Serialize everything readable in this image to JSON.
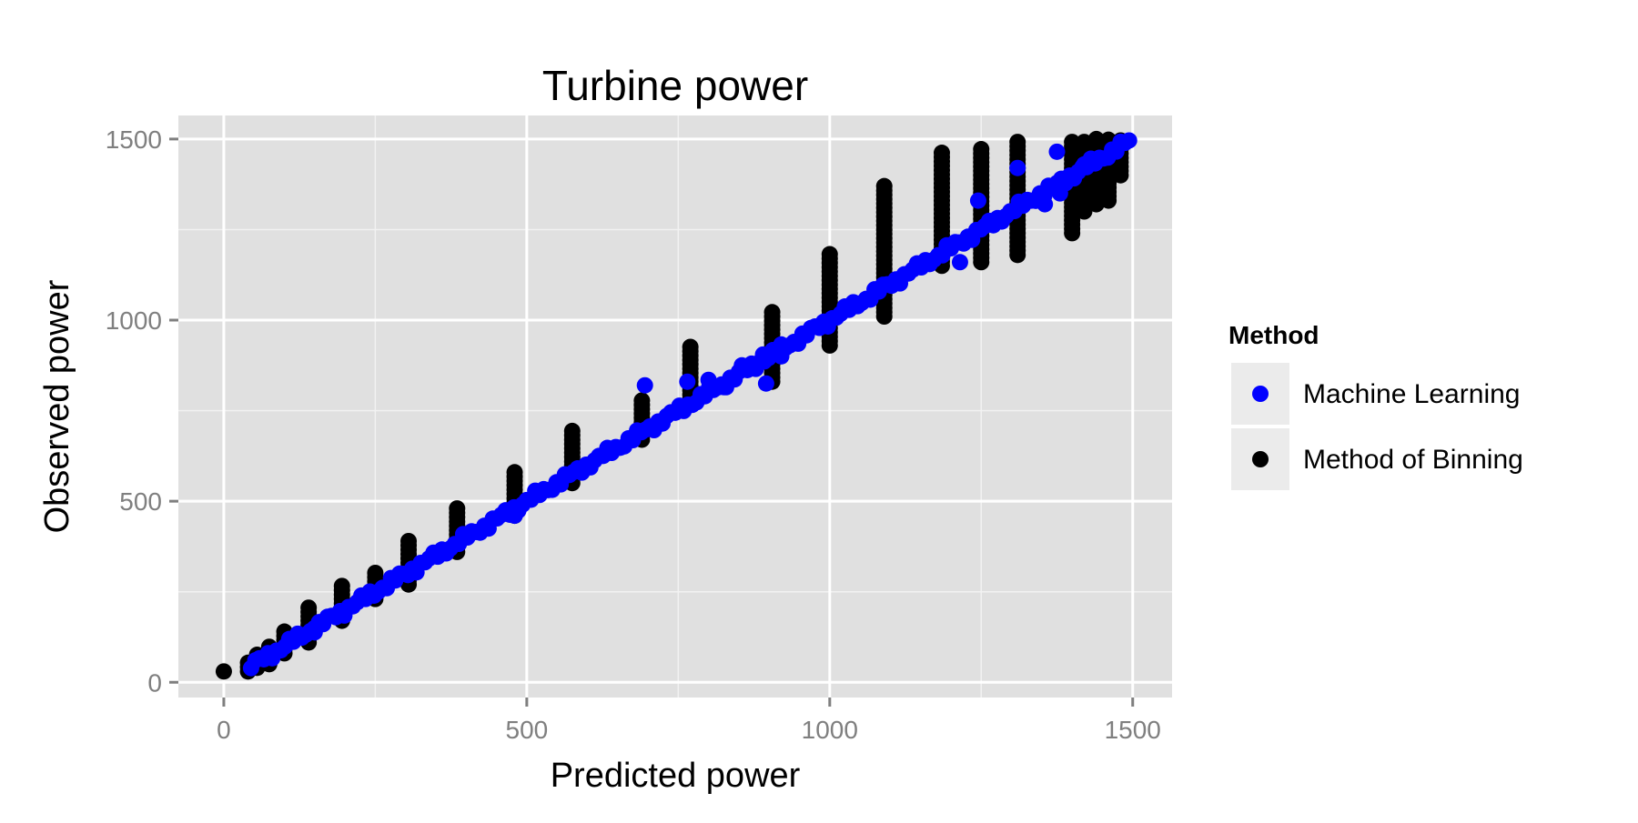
{
  "chart_data": {
    "type": "scatter",
    "title": "Turbine power",
    "xlabel": "Predicted power",
    "ylabel": "Observed power",
    "xlim": [
      -75,
      1565
    ],
    "ylim": [
      -42,
      1565
    ],
    "x_ticks": [
      0,
      500,
      1000,
      1500
    ],
    "y_ticks": [
      0,
      500,
      1000,
      1500
    ],
    "x_tick_labels": [
      "0",
      "500",
      "1000",
      "1500"
    ],
    "y_tick_labels": [
      "0",
      "500",
      "1000",
      "1500"
    ],
    "grid": true,
    "panel_background": "#e0e0e0",
    "legend": {
      "title": "Method",
      "position": "right",
      "entries": [
        {
          "label": "Machine Learning",
          "color": "#0000ff"
        },
        {
          "label": "Method of Binning",
          "color": "#000000"
        }
      ]
    },
    "series": [
      {
        "name": "Method of Binning",
        "color": "#000000",
        "columns": [
          {
            "x": 0,
            "ymin": 30,
            "ymax": 40
          },
          {
            "x": 40,
            "ymin": 30,
            "ymax": 55
          },
          {
            "x": 55,
            "ymin": 40,
            "ymax": 80
          },
          {
            "x": 75,
            "ymin": 50,
            "ymax": 100
          },
          {
            "x": 100,
            "ymin": 80,
            "ymax": 150
          },
          {
            "x": 140,
            "ymin": 110,
            "ymax": 210
          },
          {
            "x": 195,
            "ymin": 170,
            "ymax": 270
          },
          {
            "x": 250,
            "ymin": 230,
            "ymax": 310
          },
          {
            "x": 305,
            "ymin": 270,
            "ymax": 400
          },
          {
            "x": 385,
            "ymin": 360,
            "ymax": 480
          },
          {
            "x": 480,
            "ymin": 460,
            "ymax": 580
          },
          {
            "x": 575,
            "ymin": 550,
            "ymax": 700
          },
          {
            "x": 690,
            "ymin": 670,
            "ymax": 780
          },
          {
            "x": 770,
            "ymin": 770,
            "ymax": 930
          },
          {
            "x": 905,
            "ymin": 830,
            "ymax": 1030
          },
          {
            "x": 1000,
            "ymin": 930,
            "ymax": 1190
          },
          {
            "x": 1090,
            "ymin": 1010,
            "ymax": 1370
          },
          {
            "x": 1185,
            "ymin": 1150,
            "ymax": 1470
          },
          {
            "x": 1250,
            "ymin": 1160,
            "ymax": 1480
          },
          {
            "x": 1310,
            "ymin": 1180,
            "ymax": 1500
          },
          {
            "x": 1400,
            "ymin": 1240,
            "ymax": 1500
          },
          {
            "x": 1420,
            "ymin": 1300,
            "ymax": 1500
          },
          {
            "x": 1440,
            "ymin": 1320,
            "ymax": 1500
          },
          {
            "x": 1460,
            "ymin": 1330,
            "ymax": 1500
          },
          {
            "x": 1480,
            "ymin": 1400,
            "ymax": 1500
          }
        ]
      },
      {
        "name": "Machine Learning",
        "color": "#0000ff",
        "trend": {
          "x_start": 45,
          "x_end": 1495,
          "step": 7
        },
        "extra_points": [
          {
            "x": 695,
            "y": 820
          },
          {
            "x": 765,
            "y": 830
          },
          {
            "x": 800,
            "y": 835
          },
          {
            "x": 825,
            "y": 815
          },
          {
            "x": 855,
            "y": 875
          },
          {
            "x": 890,
            "y": 905
          },
          {
            "x": 895,
            "y": 825
          },
          {
            "x": 920,
            "y": 900
          },
          {
            "x": 1215,
            "y": 1160
          },
          {
            "x": 1245,
            "y": 1330
          },
          {
            "x": 1310,
            "y": 1420
          },
          {
            "x": 1375,
            "y": 1465
          },
          {
            "x": 1355,
            "y": 1320
          },
          {
            "x": 1380,
            "y": 1350
          },
          {
            "x": 1420,
            "y": 1430
          },
          {
            "x": 480,
            "y": 460
          },
          {
            "x": 290,
            "y": 300
          },
          {
            "x": 150,
            "y": 150
          }
        ]
      }
    ]
  }
}
